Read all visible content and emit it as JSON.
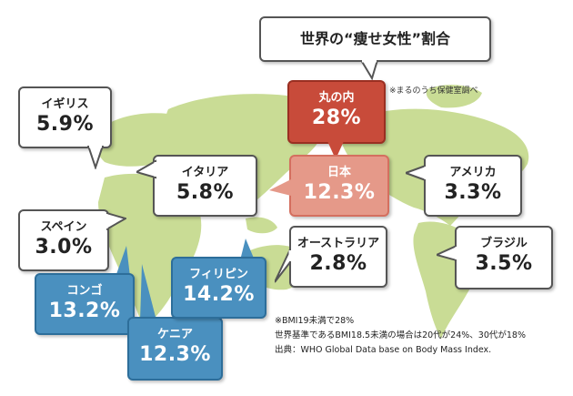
{
  "title": "世界の“痩せ女性”割合",
  "maru_note": "※まるのうち保健室調べ",
  "callouts": {
    "uk": {
      "name": "イギリス",
      "value": "5.9%"
    },
    "italy": {
      "name": "イタリア",
      "value": "5.8%"
    },
    "spain": {
      "name": "スペイン",
      "value": "3.0%"
    },
    "congo": {
      "name": "コンゴ",
      "value": "13.2%"
    },
    "kenya": {
      "name": "ケニア",
      "value": "12.3%"
    },
    "philippines": {
      "name": "フィリピン",
      "value": "14.2%"
    },
    "marunouchi": {
      "name": "丸の内",
      "value": "28%"
    },
    "japan": {
      "name": "日本",
      "value": "12.3%"
    },
    "usa": {
      "name": "アメリカ",
      "value": "3.3%"
    },
    "australia": {
      "name": "オーストラリア",
      "value": "2.8%"
    },
    "brazil": {
      "name": "ブラジル",
      "value": "3.5%"
    }
  },
  "footnotes": [
    "※BMI19未満で28%",
    "世界基準であるBMI18.5未満の場合は20代が24%、30代が18%",
    "出典：WHO Global Data base on Body Mass Index."
  ],
  "colors": {
    "map": "#c9dc95",
    "blue": "#4a90bf",
    "red": "#c84b3a",
    "salmon": "#e59989"
  }
}
